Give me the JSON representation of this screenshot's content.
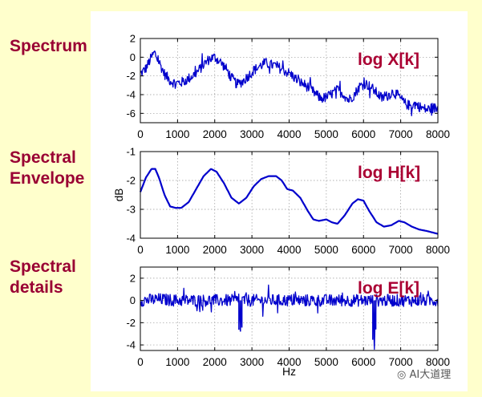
{
  "labels": {
    "spectrum": "Spectrum",
    "envelope_line1": "Spectral",
    "envelope_line2": "Envelope",
    "details_line1": "Spectral",
    "details_line2": "details"
  },
  "watermark": "AI大道理",
  "colors": {
    "background": "#ffffcc",
    "label": "#990033",
    "series": "#0000cc",
    "annotation": "#aa0033"
  },
  "chart_data": [
    {
      "type": "line",
      "annotation": "log X[k]",
      "xlabel": "",
      "ylabel": "",
      "xlim": [
        0,
        8000
      ],
      "ylim": [
        -7,
        2
      ],
      "xticks": [
        0,
        1000,
        2000,
        3000,
        4000,
        5000,
        6000,
        7000,
        8000
      ],
      "yticks": [
        2,
        0,
        -2,
        -4,
        -6
      ],
      "grid": true,
      "series": [
        {
          "noise": 0.55,
          "x": [
            0,
            150,
            300,
            380,
            500,
            650,
            800,
            950,
            1100,
            1250,
            1400,
            1550,
            1700,
            1850,
            2000,
            2150,
            2300,
            2450,
            2600,
            2750,
            2900,
            3050,
            3200,
            3350,
            3500,
            3650,
            3800,
            3950,
            4100,
            4250,
            4400,
            4550,
            4700,
            4850,
            5000,
            5150,
            5300,
            5450,
            5600,
            5750,
            5900,
            6050,
            6200,
            6350,
            6500,
            6650,
            6800,
            6950,
            7100,
            7250,
            7400,
            7550,
            7700,
            7850,
            8000
          ],
          "values": [
            -1.8,
            -1.2,
            0.0,
            0.5,
            -0.5,
            -1.8,
            -2.5,
            -2.8,
            -2.7,
            -2.4,
            -2.0,
            -1.5,
            -0.8,
            -0.2,
            0.0,
            -0.5,
            -1.2,
            -2.2,
            -2.9,
            -2.6,
            -2.0,
            -1.4,
            -1.0,
            -0.6,
            -0.8,
            -0.9,
            -1.3,
            -1.6,
            -2.0,
            -2.6,
            -2.9,
            -3.3,
            -3.9,
            -4.4,
            -4.3,
            -3.9,
            -3.5,
            -3.9,
            -4.6,
            -4.0,
            -3.1,
            -2.8,
            -3.2,
            -3.8,
            -4.4,
            -4.1,
            -3.7,
            -4.2,
            -4.9,
            -5.2,
            -5.0,
            -5.4,
            -5.6,
            -5.4,
            -5.5
          ]
        }
      ]
    },
    {
      "type": "line",
      "annotation": "log H[k]",
      "xlabel": "",
      "ylabel": "dB",
      "xlim": [
        0,
        8000
      ],
      "ylim": [
        -4,
        -1
      ],
      "xticks": [
        0,
        1000,
        2000,
        3000,
        4000,
        5000,
        6000,
        7000,
        8000
      ],
      "yticks": [
        -1,
        -2,
        -3,
        -4
      ],
      "grid": true,
      "series": [
        {
          "noise": 0,
          "x": [
            0,
            150,
            300,
            400,
            500,
            650,
            800,
            950,
            1100,
            1300,
            1500,
            1700,
            1900,
            2050,
            2250,
            2450,
            2650,
            2850,
            3050,
            3250,
            3450,
            3650,
            3800,
            3950,
            4100,
            4300,
            4500,
            4650,
            4800,
            5000,
            5150,
            5300,
            5500,
            5700,
            5850,
            6000,
            6150,
            6350,
            6550,
            6750,
            6950,
            7100,
            7300,
            7500,
            7700,
            7850,
            8000
          ],
          "values": [
            -2.4,
            -1.9,
            -1.6,
            -1.6,
            -1.9,
            -2.5,
            -2.9,
            -2.95,
            -2.95,
            -2.75,
            -2.3,
            -1.85,
            -1.6,
            -1.7,
            -2.1,
            -2.6,
            -2.8,
            -2.6,
            -2.2,
            -1.95,
            -1.85,
            -1.85,
            -2.0,
            -2.3,
            -2.35,
            -2.6,
            -3.05,
            -3.35,
            -3.4,
            -3.35,
            -3.45,
            -3.5,
            -3.2,
            -2.8,
            -2.65,
            -2.7,
            -3.05,
            -3.45,
            -3.6,
            -3.55,
            -3.4,
            -3.45,
            -3.6,
            -3.7,
            -3.75,
            -3.8,
            -3.85
          ]
        }
      ]
    },
    {
      "type": "line",
      "annotation": "log E[k]",
      "xlabel": "Hz",
      "ylabel": "",
      "xlim": [
        0,
        8000
      ],
      "ylim": [
        -4.5,
        3
      ],
      "xticks": [
        0,
        1000,
        2000,
        3000,
        4000,
        5000,
        6000,
        7000,
        8000
      ],
      "yticks": [
        2,
        0,
        -2,
        -4
      ],
      "grid": true,
      "series": [
        {
          "noise": 0.55,
          "x": [
            0,
            500,
            1000,
            2000,
            2650,
            2690,
            2730,
            3000,
            4000,
            5000,
            5500,
            6000,
            6250,
            6290,
            6330,
            6400,
            6700,
            7000,
            7500,
            8000
          ],
          "values": [
            0,
            0.1,
            0,
            0,
            0,
            -2.8,
            0,
            0,
            0,
            0,
            0,
            0,
            0,
            -4.1,
            0,
            0,
            0,
            0,
            0,
            0
          ]
        }
      ]
    }
  ]
}
